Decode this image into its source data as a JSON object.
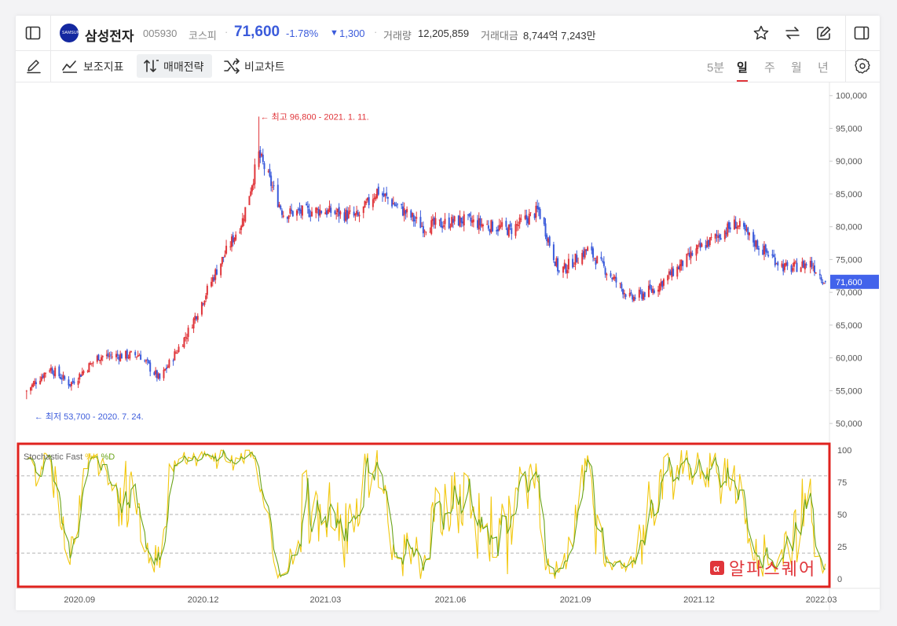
{
  "header": {
    "stock_name": "삼성전자",
    "stock_code": "005930",
    "market": "코스피",
    "separator": "·",
    "price": "71,600",
    "change_pct": "-1.78%",
    "change_arrow": "▼",
    "change_abs": "1,300",
    "volume_label": "거래량",
    "volume_value": "12,205,859",
    "turnover_label": "거래대금",
    "turnover_value": "8,744억 7,243만",
    "logo_text": "SAMSUNG"
  },
  "toolbar": {
    "indicators_label": "보조지표",
    "strategy_label": "매매전략",
    "compare_label": "비교차트",
    "periods": [
      "5분",
      "일",
      "주",
      "월",
      "년"
    ],
    "active_period": "일"
  },
  "colors": {
    "up": "#e0353a",
    "down": "#3b5bdb",
    "k_line": "#f2c80f",
    "d_line": "#6aa41a",
    "highlight_box": "#e0231f",
    "price_tag": "#4263eb"
  },
  "chart_data": [
    {
      "type": "line",
      "kind": "candlestick",
      "title": "",
      "x_tick_labels": [
        "2020.09",
        "2020.12",
        "2021.03",
        "2021.06",
        "2021.09",
        "2021.12",
        "2022.03"
      ],
      "y_tick_labels": [
        "100,000",
        "95,000",
        "90,000",
        "85,000",
        "80,000",
        "75,000",
        "70,000",
        "65,000",
        "60,000",
        "55,000",
        "50,000"
      ],
      "ylim": [
        47500,
        102000
      ],
      "current_price_label": "71,600",
      "current_price": 71600,
      "annotations": {
        "high": "최고 96,800 - 2021. 1. 11.",
        "low": "최저 53,700 - 2020. 7. 24."
      },
      "close_anchors": [
        {
          "date": "2020-07-24",
          "close": 55000
        },
        {
          "date": "2020-08-10",
          "close": 58500
        },
        {
          "date": "2020-08-25",
          "close": 56000
        },
        {
          "date": "2020-09-15",
          "close": 60200
        },
        {
          "date": "2020-10-15",
          "close": 60500
        },
        {
          "date": "2020-10-30",
          "close": 56700
        },
        {
          "date": "2020-11-20",
          "close": 64000
        },
        {
          "date": "2020-12-10",
          "close": 73000
        },
        {
          "date": "2020-12-30",
          "close": 81000
        },
        {
          "date": "2021-01-11",
          "close": 91000
        },
        {
          "date": "2021-01-29",
          "close": 82000
        },
        {
          "date": "2021-02-26",
          "close": 82500
        },
        {
          "date": "2021-03-25",
          "close": 81500
        },
        {
          "date": "2021-04-08",
          "close": 85500
        },
        {
          "date": "2021-05-12",
          "close": 80000
        },
        {
          "date": "2021-06-10",
          "close": 81000
        },
        {
          "date": "2021-07-15",
          "close": 79500
        },
        {
          "date": "2021-08-05",
          "close": 82500
        },
        {
          "date": "2021-08-20",
          "close": 73000
        },
        {
          "date": "2021-09-10",
          "close": 76500
        },
        {
          "date": "2021-10-12",
          "close": 69000
        },
        {
          "date": "2021-10-29",
          "close": 70500
        },
        {
          "date": "2021-11-30",
          "close": 76500
        },
        {
          "date": "2021-12-28",
          "close": 80500
        },
        {
          "date": "2022-01-14",
          "close": 77000
        },
        {
          "date": "2022-02-04",
          "close": 73500
        },
        {
          "date": "2022-02-21",
          "close": 74500
        },
        {
          "date": "2022-03-04",
          "close": 71600
        }
      ]
    },
    {
      "type": "line",
      "title": "Stochastic Fast",
      "legend": [
        "%K",
        "%D"
      ],
      "y_tick_labels": [
        "100",
        "75",
        "50",
        "25",
        "0"
      ],
      "ylim": [
        -5,
        105
      ],
      "reference_lines": [
        80,
        50,
        20
      ],
      "series": [
        {
          "name": "%K",
          "color": "#f2c80f"
        },
        {
          "name": "%D",
          "color": "#6aa41a"
        }
      ]
    }
  ],
  "watermark": "알파스퀘어",
  "watermark_icon": "alpha-square-icon"
}
